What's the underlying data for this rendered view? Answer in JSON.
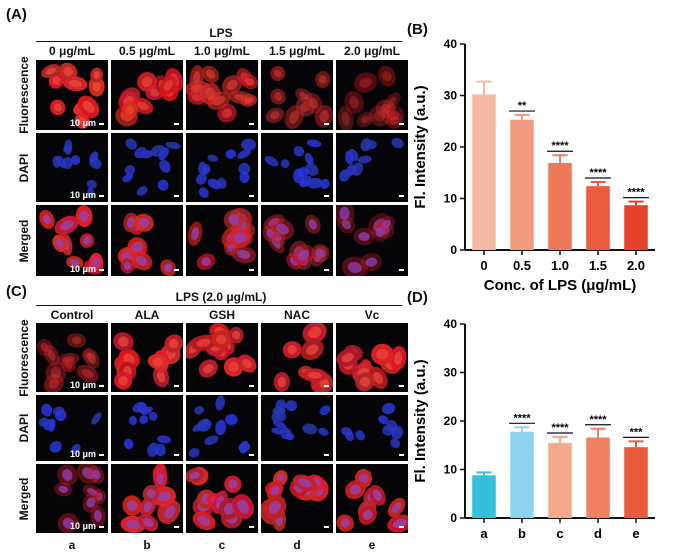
{
  "panelA": {
    "letter": "(A)",
    "group_label": "LPS",
    "columns": [
      "0 μg/mL",
      "0.5 μg/mL",
      "1.0 μg/mL",
      "1.5 μg/mL",
      "2.0 μg/mL"
    ],
    "rows": [
      "Fluorescence",
      "DAPI",
      "Merged"
    ],
    "scale_label": "10 μm"
  },
  "panelC": {
    "letter": "(C)",
    "group_label": "LPS (2.0 μg/mL)",
    "columns": [
      "Control",
      "ALA",
      "GSH",
      "NAC",
      "Vc"
    ],
    "rows": [
      "Fluorescence",
      "DAPI",
      "Merged"
    ],
    "scale_label": "10 μm",
    "bottom_labels": [
      "a",
      "b",
      "c",
      "d",
      "e"
    ]
  },
  "panelB": {
    "letter": "(B)",
    "chart_data": {
      "type": "bar",
      "ylabel": "Fl. Intensity (a.u.)",
      "xlabel": "Conc. of LPS (μg/mL)",
      "ylim": [
        0,
        40
      ],
      "yticks": [
        0,
        10,
        20,
        30,
        40
      ],
      "categories": [
        "0",
        "0.5",
        "1.0",
        "1.5",
        "2.0"
      ],
      "values": [
        30.2,
        25.3,
        16.9,
        12.4,
        8.7
      ],
      "errors": [
        2.5,
        0.9,
        1.5,
        0.8,
        0.7
      ],
      "significance": [
        "",
        "**",
        "****",
        "****",
        "****"
      ],
      "colors": [
        "#f6b9a4",
        "#f29a7e",
        "#ee7a5c",
        "#ea5c3e",
        "#e6412a"
      ]
    }
  },
  "panelD": {
    "letter": "(D)",
    "chart_data": {
      "type": "bar",
      "ylabel": "Fl. Intensity (a.u.)",
      "xlabel": "",
      "ylim": [
        0,
        40
      ],
      "yticks": [
        0,
        10,
        20,
        30,
        40
      ],
      "categories": [
        "a",
        "b",
        "c",
        "d",
        "e"
      ],
      "values": [
        8.8,
        17.8,
        15.5,
        16.6,
        14.6
      ],
      "errors": [
        0.6,
        0.9,
        1.2,
        1.8,
        1.2
      ],
      "significance": [
        "",
        "****",
        "****",
        "****",
        "***"
      ],
      "colors": [
        "#36bfd8",
        "#8fd3ee",
        "#f5a98c",
        "#ef8063",
        "#ea5a3d"
      ]
    }
  }
}
